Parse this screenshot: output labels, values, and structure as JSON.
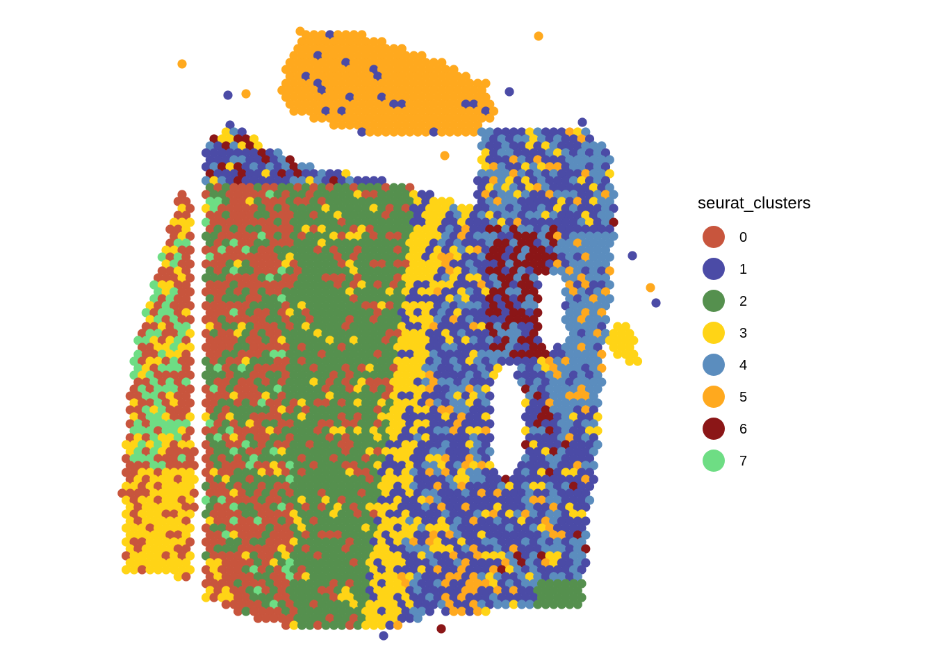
{
  "chart_data": {
    "type": "scatter",
    "title": "",
    "xlabel": "",
    "ylabel": "",
    "grid": false,
    "axes": false,
    "legend": {
      "title": "seurat_clusters",
      "placement": "right"
    },
    "series": [
      {
        "name": "0",
        "color": "#C8553D"
      },
      {
        "name": "1",
        "color": "#4B4BA6"
      },
      {
        "name": "2",
        "color": "#55904E"
      },
      {
        "name": "3",
        "color": "#FFD416"
      },
      {
        "name": "4",
        "color": "#5B8DBE"
      },
      {
        "name": "5",
        "color": "#FFA91E"
      },
      {
        "name": "6",
        "color": "#8B1617"
      },
      {
        "name": "7",
        "color": "#6EDD84"
      }
    ]
  }
}
